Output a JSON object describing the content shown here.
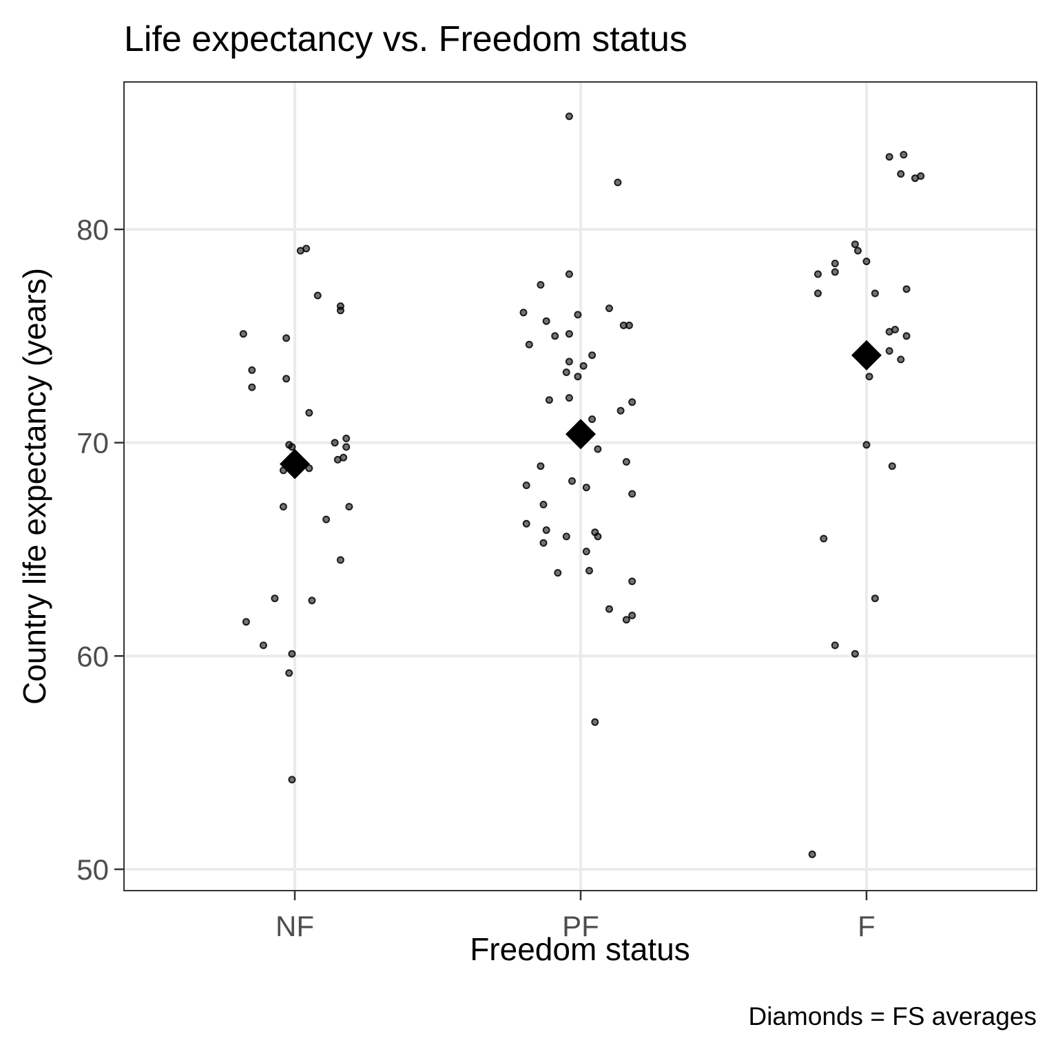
{
  "chart_data": {
    "type": "scatter",
    "title": "Life expectancy vs. Freedom status",
    "xlabel": "Freedom status",
    "ylabel": "Country life expectancy (years)",
    "caption": "Diamonds = FS averages",
    "categories": [
      "NF",
      "PF",
      "F"
    ],
    "ylim": [
      49,
      87
    ],
    "y_ticks": [
      50,
      60,
      70,
      80
    ],
    "grid": true,
    "point_color": "#000000",
    "points": [
      {
        "group": "NF",
        "jitter": -0.18,
        "y": 75.1
      },
      {
        "group": "NF",
        "jitter": -0.15,
        "y": 73.4
      },
      {
        "group": "NF",
        "jitter": -0.15,
        "y": 72.6
      },
      {
        "group": "NF",
        "jitter": -0.17,
        "y": 61.6
      },
      {
        "group": "NF",
        "jitter": -0.11,
        "y": 60.5
      },
      {
        "group": "NF",
        "jitter": -0.07,
        "y": 62.7
      },
      {
        "group": "NF",
        "jitter": -0.04,
        "y": 67.0
      },
      {
        "group": "NF",
        "jitter": -0.03,
        "y": 74.9
      },
      {
        "group": "NF",
        "jitter": -0.03,
        "y": 73.0
      },
      {
        "group": "NF",
        "jitter": -0.02,
        "y": 69.9
      },
      {
        "group": "NF",
        "jitter": -0.04,
        "y": 68.7
      },
      {
        "group": "NF",
        "jitter": -0.02,
        "y": 59.2
      },
      {
        "group": "NF",
        "jitter": -0.01,
        "y": 60.1
      },
      {
        "group": "NF",
        "jitter": -0.01,
        "y": 54.2
      },
      {
        "group": "NF",
        "jitter": -0.01,
        "y": 69.8
      },
      {
        "group": "NF",
        "jitter": 0.02,
        "y": 79.0
      },
      {
        "group": "NF",
        "jitter": 0.04,
        "y": 79.1
      },
      {
        "group": "NF",
        "jitter": 0.05,
        "y": 71.4
      },
      {
        "group": "NF",
        "jitter": 0.05,
        "y": 68.8
      },
      {
        "group": "NF",
        "jitter": 0.06,
        "y": 62.6
      },
      {
        "group": "NF",
        "jitter": 0.08,
        "y": 76.9
      },
      {
        "group": "NF",
        "jitter": 0.11,
        "y": 66.4
      },
      {
        "group": "NF",
        "jitter": 0.14,
        "y": 70.0
      },
      {
        "group": "NF",
        "jitter": 0.15,
        "y": 69.2
      },
      {
        "group": "NF",
        "jitter": 0.16,
        "y": 76.4
      },
      {
        "group": "NF",
        "jitter": 0.16,
        "y": 76.2
      },
      {
        "group": "NF",
        "jitter": 0.16,
        "y": 64.5
      },
      {
        "group": "NF",
        "jitter": 0.17,
        "y": 69.3
      },
      {
        "group": "NF",
        "jitter": 0.18,
        "y": 70.2
      },
      {
        "group": "NF",
        "jitter": 0.18,
        "y": 69.8
      },
      {
        "group": "NF",
        "jitter": 0.19,
        "y": 67.0
      },
      {
        "group": "PF",
        "jitter": -0.2,
        "y": 76.1
      },
      {
        "group": "PF",
        "jitter": -0.19,
        "y": 68.0
      },
      {
        "group": "PF",
        "jitter": -0.19,
        "y": 66.2
      },
      {
        "group": "PF",
        "jitter": -0.18,
        "y": 74.6
      },
      {
        "group": "PF",
        "jitter": -0.14,
        "y": 77.4
      },
      {
        "group": "PF",
        "jitter": -0.14,
        "y": 68.9
      },
      {
        "group": "PF",
        "jitter": -0.13,
        "y": 67.1
      },
      {
        "group": "PF",
        "jitter": -0.13,
        "y": 65.3
      },
      {
        "group": "PF",
        "jitter": -0.12,
        "y": 75.7
      },
      {
        "group": "PF",
        "jitter": -0.12,
        "y": 65.9
      },
      {
        "group": "PF",
        "jitter": -0.11,
        "y": 72.0
      },
      {
        "group": "PF",
        "jitter": -0.09,
        "y": 75.0
      },
      {
        "group": "PF",
        "jitter": -0.08,
        "y": 63.9
      },
      {
        "group": "PF",
        "jitter": -0.05,
        "y": 65.6
      },
      {
        "group": "PF",
        "jitter": -0.05,
        "y": 73.3
      },
      {
        "group": "PF",
        "jitter": -0.04,
        "y": 85.3
      },
      {
        "group": "PF",
        "jitter": -0.04,
        "y": 77.9
      },
      {
        "group": "PF",
        "jitter": -0.04,
        "y": 75.1
      },
      {
        "group": "PF",
        "jitter": -0.04,
        "y": 73.8
      },
      {
        "group": "PF",
        "jitter": -0.04,
        "y": 72.1
      },
      {
        "group": "PF",
        "jitter": -0.03,
        "y": 68.2
      },
      {
        "group": "PF",
        "jitter": -0.01,
        "y": 70.1
      },
      {
        "group": "PF",
        "jitter": -0.01,
        "y": 76.0
      },
      {
        "group": "PF",
        "jitter": -0.01,
        "y": 73.1
      },
      {
        "group": "PF",
        "jitter": 0.01,
        "y": 73.6
      },
      {
        "group": "PF",
        "jitter": 0.02,
        "y": 67.9
      },
      {
        "group": "PF",
        "jitter": 0.02,
        "y": 64.9
      },
      {
        "group": "PF",
        "jitter": 0.03,
        "y": 64.0
      },
      {
        "group": "PF",
        "jitter": 0.04,
        "y": 74.1
      },
      {
        "group": "PF",
        "jitter": 0.04,
        "y": 71.1
      },
      {
        "group": "PF",
        "jitter": 0.05,
        "y": 56.9
      },
      {
        "group": "PF",
        "jitter": 0.05,
        "y": 65.8
      },
      {
        "group": "PF",
        "jitter": 0.06,
        "y": 69.7
      },
      {
        "group": "PF",
        "jitter": 0.06,
        "y": 65.6
      },
      {
        "group": "PF",
        "jitter": 0.1,
        "y": 76.3
      },
      {
        "group": "PF",
        "jitter": 0.1,
        "y": 62.2
      },
      {
        "group": "PF",
        "jitter": 0.13,
        "y": 82.2
      },
      {
        "group": "PF",
        "jitter": 0.14,
        "y": 71.5
      },
      {
        "group": "PF",
        "jitter": 0.15,
        "y": 75.5
      },
      {
        "group": "PF",
        "jitter": 0.16,
        "y": 69.1
      },
      {
        "group": "PF",
        "jitter": 0.16,
        "y": 61.7
      },
      {
        "group": "PF",
        "jitter": 0.17,
        "y": 75.5
      },
      {
        "group": "PF",
        "jitter": 0.18,
        "y": 61.9
      },
      {
        "group": "PF",
        "jitter": 0.18,
        "y": 63.5
      },
      {
        "group": "PF",
        "jitter": 0.18,
        "y": 67.6
      },
      {
        "group": "PF",
        "jitter": 0.18,
        "y": 71.9
      },
      {
        "group": "F",
        "jitter": -0.19,
        "y": 50.7
      },
      {
        "group": "F",
        "jitter": -0.17,
        "y": 77.9
      },
      {
        "group": "F",
        "jitter": -0.17,
        "y": 77.0
      },
      {
        "group": "F",
        "jitter": -0.15,
        "y": 65.5
      },
      {
        "group": "F",
        "jitter": -0.11,
        "y": 78.4
      },
      {
        "group": "F",
        "jitter": -0.11,
        "y": 78.0
      },
      {
        "group": "F",
        "jitter": -0.11,
        "y": 60.5
      },
      {
        "group": "F",
        "jitter": -0.04,
        "y": 79.3
      },
      {
        "group": "F",
        "jitter": -0.04,
        "y": 60.1
      },
      {
        "group": "F",
        "jitter": -0.03,
        "y": 79.0
      },
      {
        "group": "F",
        "jitter": 0.0,
        "y": 69.9
      },
      {
        "group": "F",
        "jitter": 0.0,
        "y": 78.5
      },
      {
        "group": "F",
        "jitter": 0.01,
        "y": 73.1
      },
      {
        "group": "F",
        "jitter": 0.03,
        "y": 77.0
      },
      {
        "group": "F",
        "jitter": 0.03,
        "y": 62.7
      },
      {
        "group": "F",
        "jitter": 0.08,
        "y": 83.4
      },
      {
        "group": "F",
        "jitter": 0.08,
        "y": 75.2
      },
      {
        "group": "F",
        "jitter": 0.08,
        "y": 74.3
      },
      {
        "group": "F",
        "jitter": 0.09,
        "y": 68.9
      },
      {
        "group": "F",
        "jitter": 0.1,
        "y": 75.3
      },
      {
        "group": "F",
        "jitter": 0.12,
        "y": 73.9
      },
      {
        "group": "F",
        "jitter": 0.12,
        "y": 82.6
      },
      {
        "group": "F",
        "jitter": 0.13,
        "y": 83.5
      },
      {
        "group": "F",
        "jitter": 0.14,
        "y": 75.0
      },
      {
        "group": "F",
        "jitter": 0.14,
        "y": 77.2
      },
      {
        "group": "F",
        "jitter": 0.17,
        "y": 82.4
      },
      {
        "group": "F",
        "jitter": 0.19,
        "y": 82.5
      }
    ],
    "averages": [
      {
        "group": "NF",
        "y": 69.0
      },
      {
        "group": "PF",
        "y": 70.4
      },
      {
        "group": "F",
        "y": 74.1
      }
    ]
  }
}
